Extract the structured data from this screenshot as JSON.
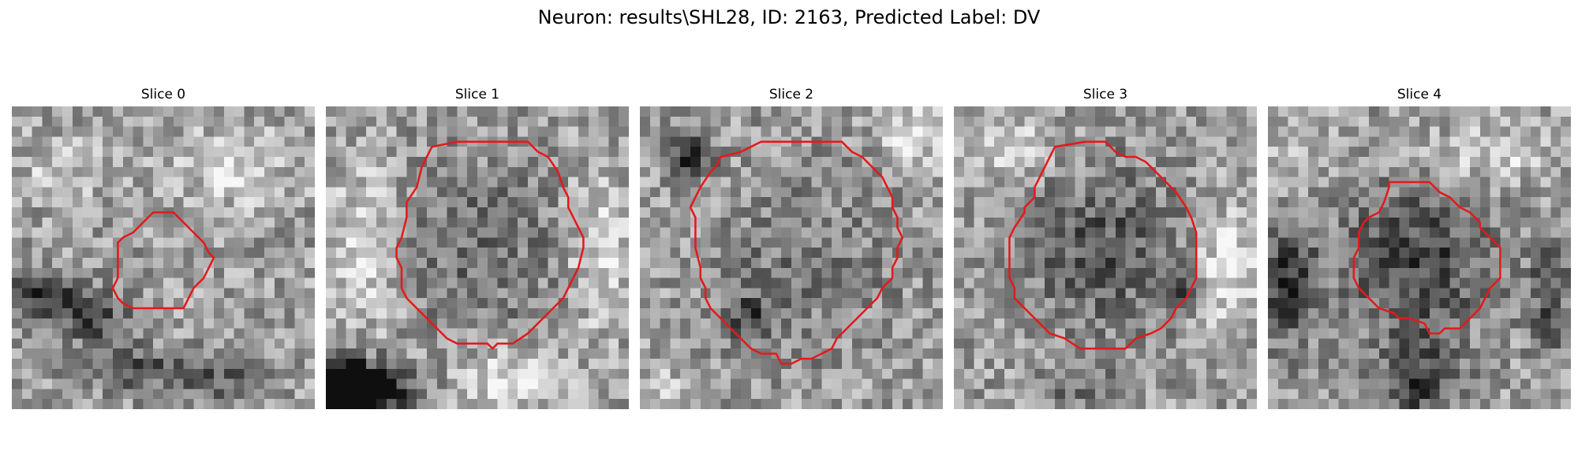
{
  "title": "Neuron: results\\SHL28, ID: 2163, Predicted Label: DV",
  "colors": {
    "contour": "#e31a1c",
    "background": "#ffffff"
  },
  "grid_size": 30,
  "slices": [
    {
      "label": "Slice 0",
      "contour": [
        [
          14,
          10.5
        ],
        [
          16,
          10.5
        ],
        [
          17,
          11.5
        ],
        [
          18,
          12.5
        ],
        [
          19,
          13.5
        ],
        [
          19.5,
          14.5
        ],
        [
          20,
          15
        ],
        [
          19.5,
          16
        ],
        [
          19,
          17
        ],
        [
          18.5,
          17.5
        ],
        [
          18,
          18
        ],
        [
          17.5,
          19
        ],
        [
          17,
          20
        ],
        [
          15,
          20
        ],
        [
          13,
          20
        ],
        [
          12,
          20
        ],
        [
          11,
          19.5
        ],
        [
          10.5,
          19
        ],
        [
          10,
          18
        ],
        [
          10.5,
          17
        ],
        [
          10.5,
          15
        ],
        [
          10.5,
          13.5
        ],
        [
          11,
          13
        ],
        [
          12,
          12.5
        ],
        [
          13,
          11.5
        ]
      ],
      "dark_blobs": [
        [
          3,
          18.5,
          3.5,
          2.2,
          0.5
        ],
        [
          8,
          21,
          4,
          2.5,
          0.35
        ],
        [
          12,
          26,
          6,
          2,
          0.3
        ],
        [
          20,
          27,
          4,
          2,
          0.25
        ]
      ],
      "light_blobs": [
        [
          22,
          6,
          6,
          4,
          0.2
        ],
        [
          5,
          6,
          5,
          3,
          0.15
        ]
      ],
      "seed": 11
    },
    {
      "label": "Slice 1",
      "contour": [
        [
          10.5,
          4
        ],
        [
          13,
          3.5
        ],
        [
          17,
          3.5
        ],
        [
          20,
          3.5
        ],
        [
          21,
          4.5
        ],
        [
          22,
          5
        ],
        [
          23,
          6.5
        ],
        [
          23.5,
          8
        ],
        [
          24,
          9
        ],
        [
          24,
          10
        ],
        [
          24.5,
          11
        ],
        [
          25,
          12
        ],
        [
          25.5,
          13
        ],
        [
          25.5,
          14
        ],
        [
          25,
          16
        ],
        [
          24.5,
          17
        ],
        [
          24,
          18
        ],
        [
          23.5,
          19
        ],
        [
          22.5,
          20
        ],
        [
          21,
          21.5
        ],
        [
          20,
          22.5
        ],
        [
          18.5,
          23.5
        ],
        [
          17,
          23.5
        ],
        [
          16.5,
          24
        ],
        [
          16,
          23.5
        ],
        [
          14,
          23.5
        ],
        [
          13,
          23.5
        ],
        [
          12,
          23
        ],
        [
          11,
          22
        ],
        [
          10,
          21
        ],
        [
          9,
          20
        ],
        [
          8,
          19
        ],
        [
          7.5,
          18
        ],
        [
          7.5,
          16
        ],
        [
          7,
          15
        ],
        [
          7,
          14
        ],
        [
          7.5,
          13
        ],
        [
          8,
          11
        ],
        [
          8,
          9.5
        ],
        [
          9,
          8
        ],
        [
          9.5,
          6
        ],
        [
          10,
          5
        ]
      ],
      "dark_blobs": [
        [
          2,
          27.5,
          4,
          2.5,
          0.8
        ],
        [
          4,
          28.5,
          5,
          2,
          0.5
        ],
        [
          15,
          14,
          9,
          9,
          0.18
        ]
      ],
      "light_blobs": [
        [
          4,
          14,
          4,
          8,
          0.25
        ],
        [
          27,
          14,
          3,
          8,
          0.25
        ],
        [
          18,
          27,
          5,
          3,
          0.3
        ]
      ],
      "seed": 23
    },
    {
      "label": "Slice 2",
      "contour": [
        [
          8,
          5
        ],
        [
          10,
          4.5
        ],
        [
          11,
          4
        ],
        [
          12,
          3.5
        ],
        [
          15,
          3.5
        ],
        [
          18,
          3.5
        ],
        [
          20,
          3.5
        ],
        [
          21,
          4.5
        ],
        [
          22,
          5
        ],
        [
          23,
          6
        ],
        [
          24,
          7
        ],
        [
          24.5,
          8
        ],
        [
          25,
          9
        ],
        [
          25,
          10
        ],
        [
          25.5,
          11
        ],
        [
          25.5,
          12
        ],
        [
          26,
          13
        ],
        [
          25.5,
          14
        ],
        [
          25.5,
          15
        ],
        [
          25,
          16
        ],
        [
          25,
          17
        ],
        [
          24,
          18
        ],
        [
          23.5,
          19
        ],
        [
          22.5,
          20
        ],
        [
          21.5,
          21
        ],
        [
          20.5,
          22
        ],
        [
          19.5,
          23
        ],
        [
          19,
          24
        ],
        [
          18,
          24.5
        ],
        [
          17,
          25
        ],
        [
          16,
          25
        ],
        [
          15,
          25.5
        ],
        [
          14,
          25.5
        ],
        [
          13.5,
          24.5
        ],
        [
          12,
          24.5
        ],
        [
          11,
          24
        ],
        [
          10,
          23
        ],
        [
          9,
          22
        ],
        [
          8,
          21
        ],
        [
          7,
          20
        ],
        [
          6.5,
          19
        ],
        [
          6.5,
          18
        ],
        [
          6,
          17
        ],
        [
          6,
          16
        ],
        [
          5.5,
          14
        ],
        [
          5.5,
          11
        ],
        [
          5,
          10
        ],
        [
          5.5,
          9
        ],
        [
          6,
          8
        ],
        [
          7,
          6.5
        ],
        [
          7.5,
          6
        ]
      ],
      "dark_blobs": [
        [
          5,
          5,
          2,
          2,
          0.45
        ],
        [
          11,
          21,
          2,
          2,
          0.35
        ],
        [
          16,
          16,
          9,
          9,
          0.15
        ]
      ],
      "light_blobs": [
        [
          27,
          3,
          3,
          3,
          0.25
        ],
        [
          2,
          28,
          3,
          2,
          0.2
        ]
      ],
      "seed": 37
    },
    {
      "label": "Slice 3",
      "contour": [
        [
          10,
          4
        ],
        [
          13,
          3.5
        ],
        [
          15,
          3.5
        ],
        [
          16,
          4.5
        ],
        [
          17,
          5
        ],
        [
          18,
          5
        ],
        [
          19,
          5.5
        ],
        [
          20,
          6.5
        ],
        [
          21,
          7.5
        ],
        [
          22,
          8.5
        ],
        [
          23,
          10
        ],
        [
          23.5,
          11
        ],
        [
          24,
          12.5
        ],
        [
          24,
          14
        ],
        [
          24,
          16
        ],
        [
          24,
          17
        ],
        [
          23.5,
          18
        ],
        [
          23,
          19
        ],
        [
          22,
          20
        ],
        [
          21.5,
          21
        ],
        [
          20.5,
          22
        ],
        [
          19.5,
          22.5
        ],
        [
          18,
          23
        ],
        [
          17,
          24
        ],
        [
          12.5,
          24
        ],
        [
          11,
          23
        ],
        [
          9.5,
          22.5
        ],
        [
          9,
          22
        ],
        [
          8,
          21
        ],
        [
          7,
          20
        ],
        [
          6,
          19
        ],
        [
          6,
          18
        ],
        [
          5.5,
          17
        ],
        [
          5.5,
          16
        ],
        [
          5.5,
          13
        ],
        [
          6,
          12
        ],
        [
          7,
          10.5
        ],
        [
          7,
          10
        ],
        [
          8,
          9
        ],
        [
          8,
          8
        ],
        [
          9,
          6
        ],
        [
          9.5,
          5
        ]
      ],
      "dark_blobs": [
        [
          15,
          14,
          8,
          8,
          0.28
        ],
        [
          22.5,
          18,
          1.2,
          1.2,
          0.5
        ],
        [
          13,
          28,
          4,
          2,
          0.2
        ]
      ],
      "light_blobs": [
        [
          5,
          4,
          5,
          4,
          0.2
        ],
        [
          27,
          16,
          3,
          6,
          0.3
        ]
      ],
      "seed": 53
    },
    {
      "label": "Slice 4",
      "contour": [
        [
          12,
          7.5
        ],
        [
          14,
          7.5
        ],
        [
          16,
          7.5
        ],
        [
          17,
          8.5
        ],
        [
          18,
          9
        ],
        [
          19,
          10
        ],
        [
          20,
          10.5
        ],
        [
          21,
          11.5
        ],
        [
          21,
          12
        ],
        [
          22,
          13
        ],
        [
          23,
          14
        ],
        [
          23,
          16
        ],
        [
          23,
          17
        ],
        [
          22,
          18
        ],
        [
          21.5,
          19
        ],
        [
          21,
          20
        ],
        [
          20,
          21
        ],
        [
          19,
          22
        ],
        [
          17.5,
          22
        ],
        [
          17,
          22.5
        ],
        [
          16,
          22.5
        ],
        [
          15.5,
          21.5
        ],
        [
          14,
          21
        ],
        [
          13,
          21
        ],
        [
          12.5,
          20.5
        ],
        [
          11,
          20
        ],
        [
          10,
          19
        ],
        [
          9.5,
          18.5
        ],
        [
          9,
          18
        ],
        [
          8.5,
          17
        ],
        [
          8.5,
          15
        ],
        [
          9,
          14
        ],
        [
          9,
          12.5
        ],
        [
          9.5,
          11.5
        ],
        [
          10,
          11
        ],
        [
          11,
          10.5
        ],
        [
          11.5,
          9.5
        ],
        [
          12,
          8
        ]
      ],
      "dark_blobs": [
        [
          15,
          15,
          8,
          7,
          0.35
        ],
        [
          2,
          18,
          3,
          6,
          0.4
        ],
        [
          15,
          27,
          4,
          5,
          0.35
        ],
        [
          28,
          19,
          2,
          5,
          0.3
        ]
      ],
      "light_blobs": [
        [
          22,
          5,
          6,
          3,
          0.2
        ],
        [
          3,
          4,
          4,
          4,
          0.15
        ]
      ],
      "seed": 71
    }
  ]
}
